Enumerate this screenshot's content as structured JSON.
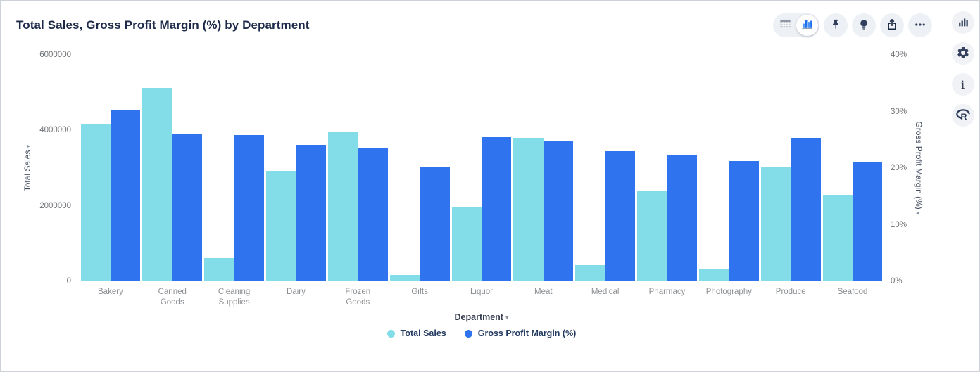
{
  "header": {
    "title": "Total Sales, Gross Profit Margin (%) by Department",
    "toolbar": {
      "view_toggle": {
        "options": [
          "table-view",
          "chart-view"
        ],
        "selected": "chart-view"
      },
      "buttons": [
        "pin",
        "lightbulb",
        "export",
        "more-options"
      ]
    }
  },
  "chart_data": {
    "type": "bar",
    "title": "Total Sales, Gross Profit Margin (%) by Department",
    "categories": [
      "Bakery",
      "Canned Goods",
      "Cleaning Supplies",
      "Dairy",
      "Frozen Goods",
      "Gifts",
      "Liquor",
      "Meat",
      "Medical",
      "Pharmacy",
      "Photography",
      "Produce",
      "Seafood"
    ],
    "series": [
      {
        "name": "Total Sales",
        "axis": "left",
        "color": "#82DDE8",
        "values": [
          4150000,
          5130000,
          610000,
          2920000,
          3960000,
          170000,
          1980000,
          3800000,
          430000,
          2400000,
          320000,
          3030000,
          2270000
        ]
      },
      {
        "name": "Gross Profit Margin (%)",
        "axis": "right",
        "color": "#2F74EE",
        "values": [
          30.3,
          26.0,
          25.9,
          24.1,
          23.5,
          20.3,
          25.5,
          24.9,
          23.0,
          22.4,
          21.3,
          25.4,
          21.0
        ]
      }
    ],
    "x_axis": {
      "label": "Department",
      "arrow": "▾"
    },
    "left_axis": {
      "title": "Total Sales",
      "arrow": "▾",
      "ticks": [
        0,
        2000000,
        4000000,
        6000000
      ],
      "max": 6000000,
      "suffix": ""
    },
    "right_axis": {
      "title": "Gross Profit Margin (%)",
      "arrow": "▾",
      "ticks": [
        0,
        10,
        20,
        30,
        40
      ],
      "max": 40,
      "suffix": "%"
    },
    "grid": false,
    "legend_position": "bottom"
  },
  "legend": {
    "items": [
      {
        "label": "Total Sales",
        "color": "#82DDE8"
      },
      {
        "label": "Gross Profit Margin (%)",
        "color": "#2F74EE"
      }
    ]
  },
  "sidebar": {
    "icons": [
      "bar-chart",
      "settings",
      "info",
      "r-logo"
    ]
  },
  "colors": {
    "series_total_sales": "#82DDE8",
    "series_gross_profit_margin": "#2F74EE",
    "icon_navy": "#323F5C",
    "button_bg": "#EDF0F4",
    "title_text": "#1D2A4A",
    "toggle_selected_blue": "#2E7CF0"
  }
}
